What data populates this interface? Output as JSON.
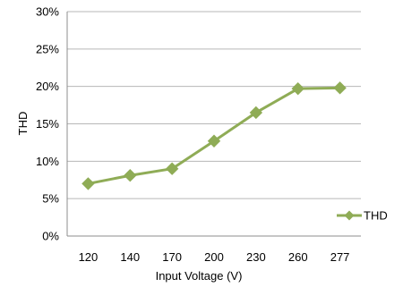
{
  "chart_data": {
    "type": "line",
    "title": "",
    "xlabel": "Input Voltage (V)",
    "ylabel": "THD",
    "categories": [
      "120",
      "140",
      "170",
      "200",
      "230",
      "260",
      "277"
    ],
    "y_tick_labels": [
      "0%",
      "5%",
      "10%",
      "15%",
      "20%",
      "25%",
      "30%"
    ],
    "ylim": [
      0,
      0.3
    ],
    "grid": true,
    "legend_position": "right",
    "series": [
      {
        "name": "THD",
        "color": "#8fac56",
        "marker": "diamond",
        "values": [
          0.07,
          0.081,
          0.09,
          0.127,
          0.165,
          0.197,
          0.198
        ]
      }
    ]
  }
}
